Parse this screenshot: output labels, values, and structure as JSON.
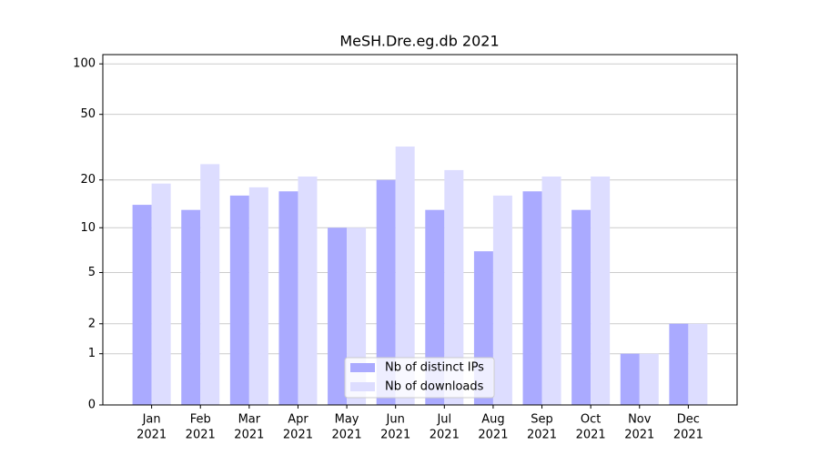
{
  "chart_data": {
    "type": "bar",
    "title": "MeSH.Dre.eg.db 2021",
    "categories": [
      [
        "Jan",
        "2021"
      ],
      [
        "Feb",
        "2021"
      ],
      [
        "Mar",
        "2021"
      ],
      [
        "Apr",
        "2021"
      ],
      [
        "May",
        "2021"
      ],
      [
        "Jun",
        "2021"
      ],
      [
        "Jul",
        "2021"
      ],
      [
        "Aug",
        "2021"
      ],
      [
        "Sep",
        "2021"
      ],
      [
        "Oct",
        "2021"
      ],
      [
        "Nov",
        "2021"
      ],
      [
        "Dec",
        "2021"
      ]
    ],
    "series": [
      {
        "name": "Nb of distinct IPs",
        "color": "#aaaaff",
        "values": [
          14,
          13,
          16,
          17,
          10,
          20,
          13,
          7,
          17,
          13,
          1,
          2
        ]
      },
      {
        "name": "Nb of downloads",
        "color": "#ddddff",
        "values": [
          19,
          25,
          18,
          21,
          10,
          32,
          23,
          16,
          21,
          21,
          1,
          2
        ]
      }
    ],
    "y_scale": "log1p",
    "ylim": [
      0,
      113.5
    ],
    "yticks": [
      0,
      1,
      2,
      5,
      10,
      20,
      50,
      100
    ],
    "grid": true,
    "legend": "lower center"
  }
}
